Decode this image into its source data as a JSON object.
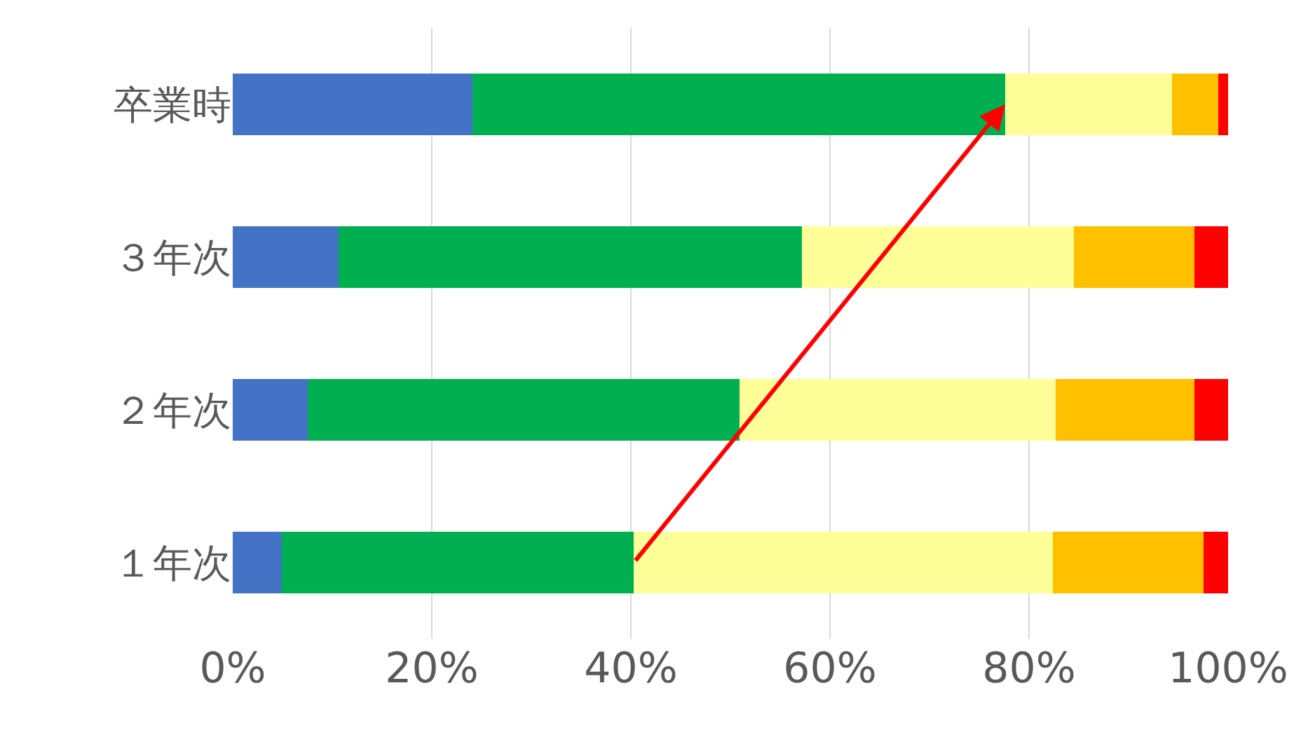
{
  "chart_data": {
    "type": "bar",
    "orientation": "horizontal",
    "stacked": true,
    "categories": [
      "卒業時",
      "３年次",
      "２年次",
      "１年次"
    ],
    "series": [
      {
        "color": "#4472c4",
        "values": [
          24.1,
          10.6,
          7.5,
          4.9
        ]
      },
      {
        "color": "#00b050",
        "values": [
          53.5,
          46.6,
          43.4,
          35.4
        ]
      },
      {
        "color": "#ffff99",
        "values": [
          16.8,
          27.3,
          31.8,
          42.1
        ]
      },
      {
        "color": "#ffc000",
        "values": [
          4.6,
          12.1,
          13.9,
          15.1
        ]
      },
      {
        "color": "#ff0000",
        "values": [
          1.0,
          3.4,
          3.4,
          2.5
        ]
      }
    ],
    "xlim": [
      0,
      100
    ],
    "xticks": [
      {
        "value": 0,
        "label": "0%"
      },
      {
        "value": 20,
        "label": "20%"
      },
      {
        "value": 40,
        "label": "40%"
      },
      {
        "value": 60,
        "label": "60%"
      },
      {
        "value": 80,
        "label": "80%"
      },
      {
        "value": 100,
        "label": "100%"
      }
    ],
    "grid": "x"
  }
}
